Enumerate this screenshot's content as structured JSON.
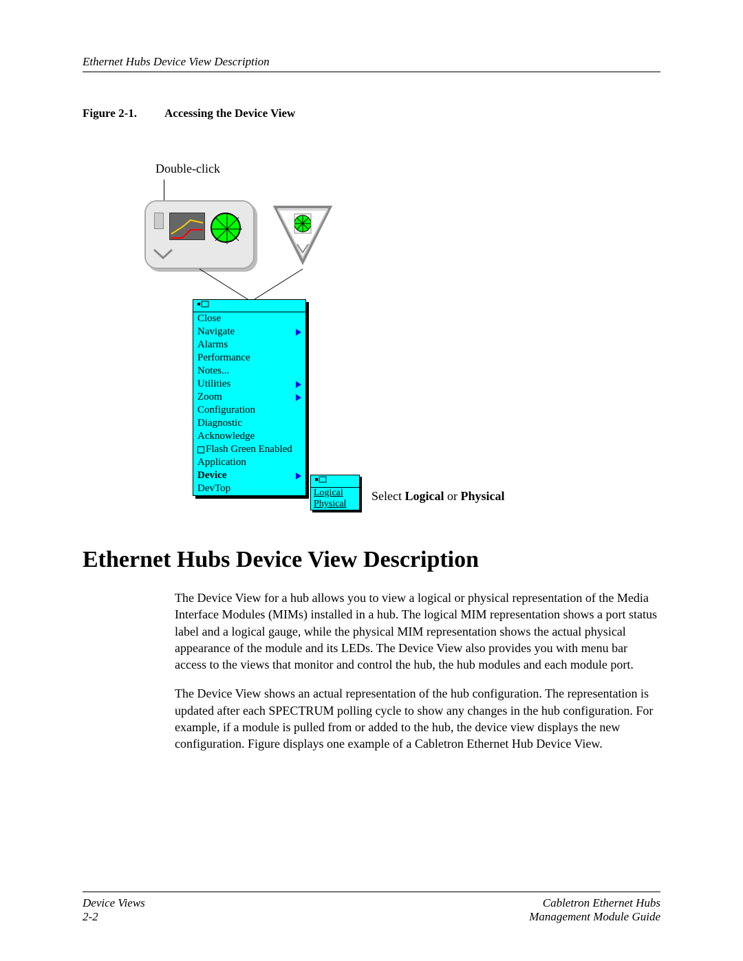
{
  "header": {
    "left": "Ethernet Hubs Device View Description"
  },
  "figure": {
    "label": "Figure 2-1.",
    "title": "Accessing the Device View",
    "double_click": "Double-click",
    "select_text_pre": "Select ",
    "select_bold1": "Logical",
    "select_mid": " or ",
    "select_bold2": "Physical"
  },
  "menu": {
    "tear_icon": "⎯",
    "items": [
      {
        "label": "Close",
        "arrow": false,
        "bold": false
      },
      {
        "label": "Navigate",
        "arrow": true,
        "bold": false
      },
      {
        "label": "Alarms",
        "arrow": false,
        "bold": false
      },
      {
        "label": "Performance",
        "arrow": false,
        "bold": false
      },
      {
        "label": "Notes...",
        "arrow": false,
        "bold": false
      },
      {
        "label": "Utilities",
        "arrow": true,
        "bold": false
      },
      {
        "label": "Zoom",
        "arrow": true,
        "bold": false
      },
      {
        "label": "Configuration",
        "arrow": false,
        "bold": false
      },
      {
        "label": "Diagnostic",
        "arrow": false,
        "bold": false
      },
      {
        "label": "Acknowledge",
        "arrow": false,
        "bold": false
      },
      {
        "label": "Flash Green Enabled",
        "arrow": false,
        "bold": false,
        "checkbox": true
      },
      {
        "label": "Application",
        "arrow": false,
        "bold": false
      },
      {
        "label": "Device",
        "arrow": true,
        "bold": true
      },
      {
        "label": "DevTop",
        "arrow": false,
        "bold": false
      }
    ]
  },
  "submenu": {
    "items": [
      "Logical",
      "Physical"
    ]
  },
  "colors": {
    "cyan": "#00ffff",
    "green": "#00ff00",
    "blue": "#0000ff"
  },
  "section": {
    "heading": "Ethernet Hubs Device View Description",
    "para1": "The Device View for a hub allows you to view a logical or physical representation of the Media Interface Modules (MIMs) installed in a hub. The logical MIM representation shows a port status label and a logical gauge, while the physical MIM representation shows the actual physical appearance of the module and its LEDs. The Device View also provides you with menu bar access to the views that monitor and control the hub, the hub modules and each module port.",
    "para2": "The Device View shows an actual representation of the hub configuration. The representation is updated after each SPECTRUM polling cycle to show any changes in the hub configuration. For example, if a module is pulled from or added to the hub, the device view displays the new configuration. Figure displays one example of a Cabletron Ethernet Hub Device View."
  },
  "footer": {
    "left_top": "Device Views",
    "left_bottom": "2-2",
    "right_top": "Cabletron Ethernet Hubs",
    "right_bottom": "Management Module Guide"
  }
}
